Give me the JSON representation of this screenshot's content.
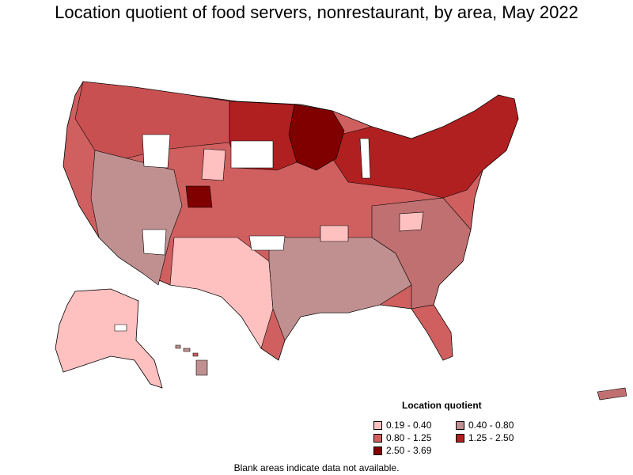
{
  "title": "Location quotient of food servers, nonrestaurant, by area, May 2022",
  "legend": {
    "title": "Location quotient",
    "items": [
      {
        "label": "0.19 - 0.40",
        "color": "#ffc0c0"
      },
      {
        "label": "0.40 - 0.80",
        "color": "#c09090"
      },
      {
        "label": "0.80 - 1.25",
        "color": "#d06060"
      },
      {
        "label": "1.25 - 2.50",
        "color": "#b02020"
      },
      {
        "label": "2.50 - 3.69",
        "color": "#800000"
      }
    ]
  },
  "footnote": "Blank areas indicate data not available.",
  "map_colors": {
    "background": "#ffffff",
    "border": "#000000",
    "no_data": "#ffffff"
  }
}
